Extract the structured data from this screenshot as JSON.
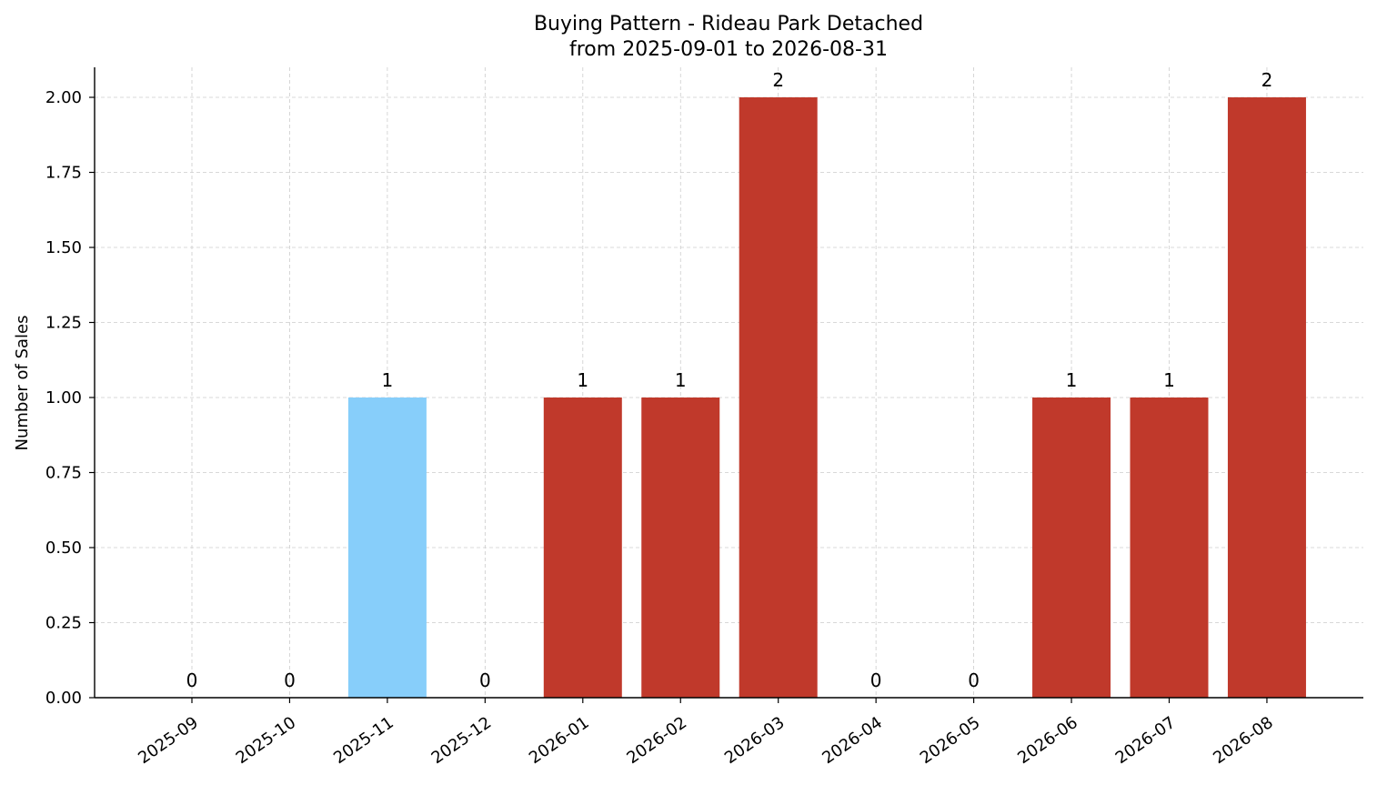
{
  "chart_data": {
    "type": "bar",
    "title": "Buying Pattern - Rideau Park Detached",
    "subtitle": "from 2025-09-01 to 2026-08-31",
    "xlabel": "",
    "ylabel": "Number of Sales",
    "categories": [
      "2025-09",
      "2025-10",
      "2025-11",
      "2025-12",
      "2026-01",
      "2026-02",
      "2026-03",
      "2026-04",
      "2026-05",
      "2026-06",
      "2026-07",
      "2026-08"
    ],
    "values": [
      0,
      0,
      1,
      0,
      1,
      1,
      2,
      0,
      0,
      1,
      1,
      2
    ],
    "bar_labels": [
      "0",
      "0",
      "1",
      "0",
      "1",
      "1",
      "2",
      "0",
      "0",
      "1",
      "1",
      "2"
    ],
    "bar_colors": [
      "#c0392b",
      "#c0392b",
      "#87cefa",
      "#c0392b",
      "#c0392b",
      "#c0392b",
      "#c0392b",
      "#c0392b",
      "#c0392b",
      "#c0392b",
      "#c0392b",
      "#c0392b"
    ],
    "ylim": [
      0,
      2.1
    ],
    "yticks": [
      0,
      0.25,
      0.5,
      0.75,
      1.0,
      1.25,
      1.5,
      1.75,
      2.0
    ],
    "ytick_labels": [
      "0.00",
      "0.25",
      "0.50",
      "0.75",
      "1.00",
      "1.25",
      "1.50",
      "1.75",
      "2.00"
    ],
    "grid": true,
    "legend": "none"
  }
}
